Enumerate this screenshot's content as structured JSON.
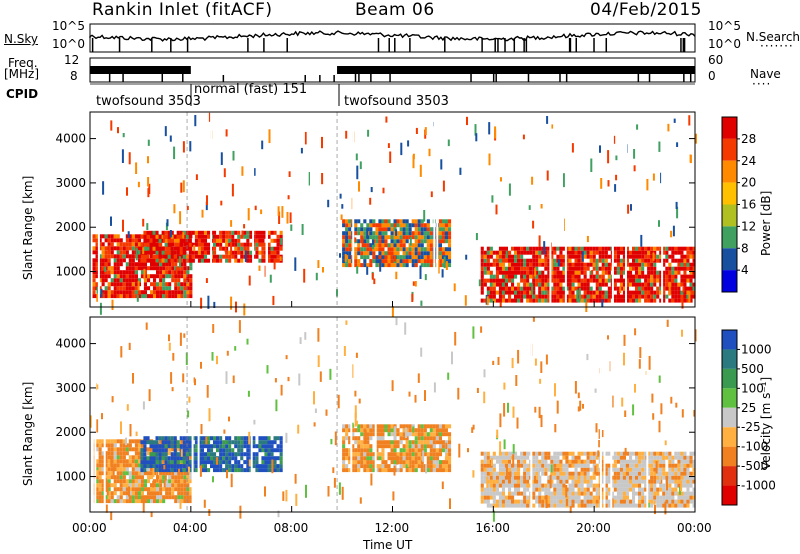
{
  "header": {
    "station": "Rankin Inlet (fitACF)",
    "beam": "Beam 06",
    "date": "04/Feb/2015"
  },
  "strip": {
    "nsky_label": "N.Sky",
    "nsky_ticks": [
      "10^5",
      "10^0"
    ],
    "freq_label_1": "Freq.",
    "freq_label_2": "[MHz]",
    "freq_ticks": [
      "12",
      "8"
    ],
    "right_ticks_top": [
      "10^5",
      "10^0"
    ],
    "right_ticks_bottom": [
      "60",
      "0"
    ],
    "nsearch_label": "N.Search",
    "nave_label": "Nave",
    "cpid_label": "CPID",
    "cpid_segments": [
      {
        "label": "twofsound 3503",
        "start_h": 0.0,
        "end_h": 3.85
      },
      {
        "label": "normal (fast) 151",
        "start_h": 3.85,
        "end_h": 9.8
      },
      {
        "label": "twofsound 3503",
        "start_h": 9.8,
        "end_h": 24.0
      }
    ]
  },
  "chart_data": [
    {
      "type": "heatmap",
      "panel": "power",
      "ylabel": "Slant Range [km]",
      "ylim": [
        200,
        4600
      ],
      "xlim": [
        0,
        24
      ],
      "y_ticks": [
        1000,
        2000,
        3000,
        4000
      ],
      "colorbar_label": "Power [dB]",
      "colorbar_ticks": [
        "28",
        "24",
        "20",
        "16",
        "12",
        "8",
        "4"
      ],
      "colorbar_colors": [
        "#e00000",
        "#f53a00",
        "#ff8a00",
        "#ffc000",
        "#b0c020",
        "#40a060",
        "#1850a0",
        "#0000e0"
      ],
      "regions": [
        {
          "t0": 0.1,
          "t1": 4.0,
          "r0": 400,
          "r1": 1800,
          "level": "high"
        },
        {
          "t0": 2.0,
          "t1": 7.6,
          "r0": 1200,
          "r1": 1900,
          "level": "high"
        },
        {
          "t0": 10.0,
          "t1": 14.2,
          "r0": 1100,
          "r1": 2100,
          "level": "mid"
        },
        {
          "t0": 15.5,
          "t1": 24.0,
          "r0": 300,
          "r1": 1500,
          "level": "high"
        }
      ]
    },
    {
      "type": "heatmap",
      "panel": "velocity",
      "ylabel": "Slant Range [km]",
      "ylim": [
        200,
        4600
      ],
      "xlim": [
        0,
        24
      ],
      "y_ticks": [
        1000,
        2000,
        3000,
        4000
      ],
      "colorbar_label": "Velocity [m s⁻¹]",
      "colorbar_ticks": [
        "1000",
        "500",
        "100",
        "25",
        "-25",
        "-100",
        "-500",
        "-1000"
      ],
      "colorbar_colors": [
        "#2050c0",
        "#2a7a80",
        "#3a9a50",
        "#60c040",
        "#c8c8c8",
        "#ffb040",
        "#f08020",
        "#e03010",
        "#e00000"
      ],
      "regions": [
        {
          "t0": 0.1,
          "t1": 4.0,
          "r0": 400,
          "r1": 1800,
          "level": "orange"
        },
        {
          "t0": 2.0,
          "t1": 7.6,
          "r0": 1100,
          "r1": 1900,
          "level": "blue"
        },
        {
          "t0": 10.0,
          "t1": 14.2,
          "r0": 1100,
          "r1": 2100,
          "level": "orange"
        },
        {
          "t0": 15.5,
          "t1": 24.0,
          "r0": 300,
          "r1": 1500,
          "level": "gray"
        }
      ]
    }
  ],
  "xaxis": {
    "label": "Time UT",
    "ticks": [
      "00:00",
      "04:00",
      "08:00",
      "12:00",
      "16:00",
      "20:00",
      "00:00"
    ]
  }
}
